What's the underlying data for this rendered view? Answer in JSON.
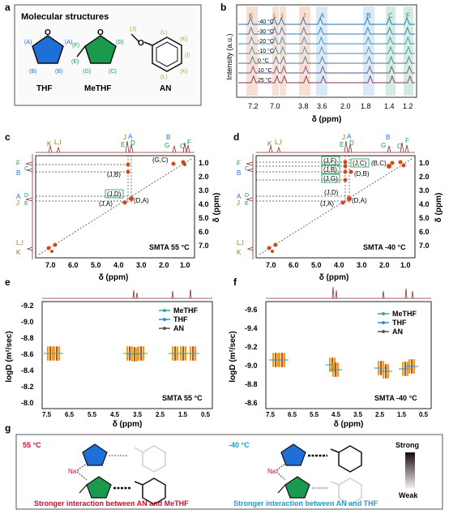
{
  "panel_labels": [
    "a",
    "b",
    "c",
    "d",
    "e",
    "f",
    "g"
  ],
  "panel_a": {
    "title": "Molecular structures",
    "molecules": [
      {
        "name": "THF",
        "color": "#1f6fd8",
        "labels": [
          "(A)",
          "(A)",
          "(B)",
          "(B)"
        ]
      },
      {
        "name": "MeTHF",
        "color": "#1a9a4e",
        "labels": [
          "(F)",
          "(D)",
          "(E)",
          "(G)",
          "(C)"
        ]
      },
      {
        "name": "AN",
        "color": "#c8a21a",
        "labels": [
          "(J)",
          "(L)",
          "(K)",
          "(I)",
          "(L)",
          "(K)"
        ]
      }
    ]
  },
  "panel_b": {
    "chart_data": {
      "type": "line",
      "ylabel": "Intensity (a.u.)",
      "xlabel": "δ (ppm)",
      "series": [
        {
          "name": "-40 °C",
          "color": "#1e6fb5"
        },
        {
          "name": "-30 °C",
          "color": "#2a7fba"
        },
        {
          "name": "-20 °C",
          "color": "#3b8fb8"
        },
        {
          "name": "-10 °C",
          "color": "#4c8fa6"
        },
        {
          "name": "0 °C",
          "color": "#5b6f94"
        },
        {
          "name": "10 °C",
          "color": "#6b4f82"
        },
        {
          "name": "25 °C",
          "color": "#8a2f5a"
        }
      ],
      "peak_labels": [
        "K",
        "L",
        "I",
        "J",
        "A",
        "B",
        "C",
        "F"
      ],
      "x_ticks": [
        "7.2",
        "7.0",
        "3.8",
        "3.6",
        "2.0",
        "1.8",
        "1.4",
        "1.2"
      ]
    }
  },
  "panel_c": {
    "chart_data": {
      "type": "scatter",
      "condition": "SMTA 55 °C",
      "xlabel": "δ (ppm)",
      "ylabel": "δ (ppm)",
      "x_ticks": [
        "7.0",
        "6.0",
        "5.0",
        "4.0",
        "3.0",
        "2.0",
        "1.0"
      ],
      "y_ticks": [
        "1.0",
        "2.0",
        "3.0",
        "4.0",
        "5.0",
        "6.0",
        "7.0"
      ],
      "cross_peaks": [
        "(G,C)",
        "(J,B)",
        "(J,D)",
        "(D,A)",
        "(J,A)"
      ],
      "top_labels": [
        "K",
        "L,I",
        "J",
        "A",
        "E",
        "D",
        "B",
        "G",
        "F",
        "C"
      ],
      "left_labels": [
        "F",
        "C",
        "B",
        "A",
        "D",
        "J",
        "E",
        "L,I",
        "K"
      ]
    }
  },
  "panel_d": {
    "chart_data": {
      "type": "scatter",
      "condition": "SMTA -40 °C",
      "xlabel": "δ (ppm)",
      "ylabel": "δ (ppm)",
      "x_ticks": [
        "7.0",
        "6.0",
        "5.0",
        "4.0",
        "3.0",
        "2.0",
        "1.0"
      ],
      "y_ticks": [
        "1.0",
        "2.0",
        "3.0",
        "4.0",
        "5.0",
        "6.0",
        "7.0"
      ],
      "cross_peaks": [
        "(J,F)",
        "(J,C)",
        "(B,C)",
        "(J,B)",
        "(D,B)",
        "(J,G)",
        "(J,D)",
        "(D,A)",
        "(J,A)"
      ],
      "top_labels": [
        "K",
        "L,I",
        "J",
        "A",
        "E",
        "D",
        "B",
        "G",
        "F",
        "C"
      ],
      "left_labels": [
        "F",
        "C",
        "B",
        "A",
        "D",
        "J",
        "E",
        "L,I",
        "K"
      ]
    }
  },
  "panel_e": {
    "chart_data": {
      "type": "scatter",
      "condition": "SMTA 55 °C",
      "xlabel": "δ (ppm)",
      "ylabel": "logD (m²/sec)",
      "x_ticks": [
        "7.5",
        "7.0",
        "6.5",
        "6.0",
        "5.5",
        "5.0",
        "4.5",
        "4.0",
        "3.5",
        "3.0",
        "2.5",
        "2.0",
        "1.5",
        "1.0",
        "0.5"
      ],
      "y_ticks": [
        "-9.2",
        "-9.0",
        "-8.8",
        "-8.6",
        "-8.4",
        "-8.2",
        "-8.0"
      ],
      "series": [
        {
          "name": "MeTHF",
          "color": "#3aa89a"
        },
        {
          "name": "THF",
          "color": "#2a8ee0"
        },
        {
          "name": "AN",
          "color": "#555555"
        }
      ]
    }
  },
  "panel_f": {
    "chart_data": {
      "type": "scatter",
      "condition": "SMTA -40 °C",
      "xlabel": "δ (ppm)",
      "ylabel": "logD (m²/sec)",
      "x_ticks": [
        "7.5",
        "7.0",
        "6.5",
        "6.0",
        "5.5",
        "5.0",
        "4.5",
        "4.0",
        "3.5",
        "3.0",
        "2.5",
        "2.0",
        "1.5",
        "1.0",
        "0.5"
      ],
      "y_ticks": [
        "-9.6",
        "-9.4",
        "-9.2",
        "-9.0",
        "-8.8",
        "-8.6"
      ],
      "series": [
        {
          "name": "MeTHF",
          "color": "#3aa89a"
        },
        {
          "name": "THF",
          "color": "#2a8ee0"
        },
        {
          "name": "AN",
          "color": "#555555"
        }
      ]
    }
  },
  "panel_g": {
    "left_temp": "55 °C",
    "right_temp": "-40 °C",
    "ion_label": "Na⁺",
    "left_caption": "Stronger interaction between AN and MeTHF",
    "right_caption": "Stronger interaction between AN and THF",
    "legend_strong": "Strong",
    "legend_weak": "Weak",
    "left_temp_color": "#c8102e",
    "right_temp_color": "#1e9ad6"
  }
}
